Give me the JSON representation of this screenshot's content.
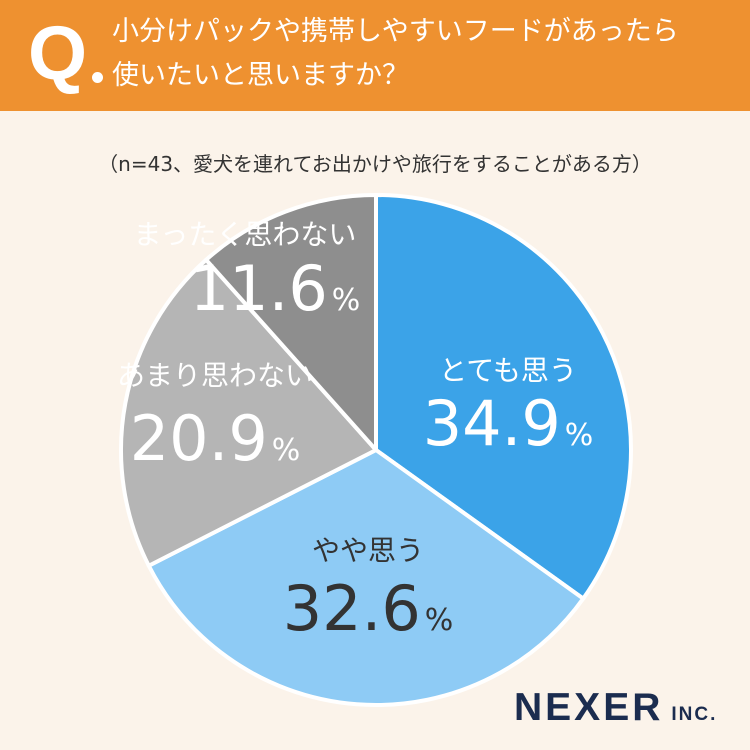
{
  "header": {
    "q_mark": "Q",
    "question_line1": "小分けパックや携帯しやすいフードがあったら",
    "question_line2": "使いたいと思いますか？"
  },
  "subtitle": "（n=43、愛犬を連れてお出かけや旅行をすることがある方）",
  "colors": {
    "header_bg": "#ee9130",
    "background": "#fbf3ea",
    "slice_1": "#3ba3e8",
    "slice_2": "#8ecbf5",
    "slice_3": "#b5b5b5",
    "slice_4": "#8e8e8e"
  },
  "chart_data": {
    "type": "pie",
    "title": "",
    "unit": "%",
    "start_angle": "12 o'clock",
    "direction": "clockwise",
    "slices": [
      {
        "label": "とても思う",
        "value": 34.9,
        "value_text": "34.9",
        "color": "#3ba3e8",
        "text_color": "#ffffff"
      },
      {
        "label": "やや思う",
        "value": 32.6,
        "value_text": "32.6",
        "color": "#8ecbf5",
        "text_color": "#333333"
      },
      {
        "label": "あまり思わない",
        "value": 20.9,
        "value_text": "20.9",
        "color": "#b5b5b5",
        "text_color": "#ffffff"
      },
      {
        "label": "まったく思わない",
        "value": 11.6,
        "value_text": "11.6",
        "color": "#8e8e8e",
        "text_color": "#ffffff"
      }
    ]
  },
  "logo": {
    "name": "NEXER",
    "suffix": "INC."
  }
}
